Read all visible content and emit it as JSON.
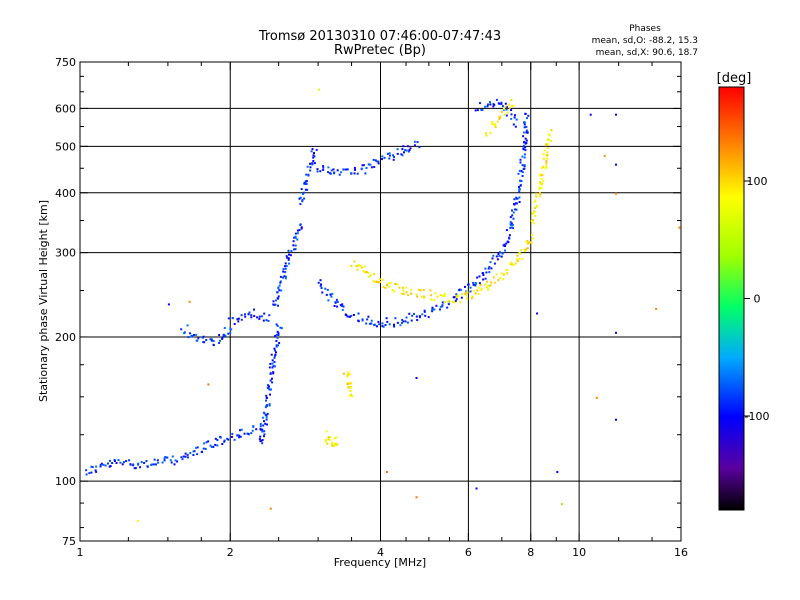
{
  "chart_data": {
    "type": "scatter",
    "title": "Tromsø 20130310 07:46:00-07:47:43",
    "subtitle": "RwPretec (Bp)",
    "xlabel": "Frequency [MHz]",
    "ylabel": "Stationary phase Virtual Height [km]",
    "x_scale": "log",
    "y_scale": "log",
    "xlim": [
      1,
      16
    ],
    "ylim": [
      75,
      750
    ],
    "grid": true,
    "x_ticks": [
      1,
      2,
      4,
      6,
      8,
      10,
      16
    ],
    "x_tick_labels": [
      "1",
      "2",
      "4",
      "6",
      "8",
      "10",
      "16"
    ],
    "y_ticks": [
      75,
      100,
      200,
      300,
      400,
      500,
      600,
      750
    ],
    "y_tick_labels": [
      "75",
      "100",
      "200",
      "300",
      "400",
      "500",
      "600",
      "750"
    ],
    "x_minor_ticks": [
      1.25,
      1.5,
      1.75,
      2.5,
      3,
      3.5,
      4.5,
      5,
      5.5,
      7,
      9,
      12,
      14
    ],
    "y_minor_ticks": [
      80,
      90,
      125,
      150,
      175,
      250,
      350,
      450,
      550,
      650,
      700
    ],
    "phase_stats": {
      "heading": "Phases",
      "line_o": "mean, sd,O: -88.2, 15.3",
      "line_x": "mean, sd,X:  90.6, 18.7"
    },
    "colorbar": {
      "label": "[deg]",
      "range": [
        -180,
        180
      ],
      "ticks": [
        100,
        0,
        -100
      ],
      "tick_labels": [
        "100",
        "0",
        "-100"
      ],
      "colormap": "rainbow"
    },
    "series": [
      {
        "color_deg": -88,
        "segments": [
          {
            "x": [
              1.02,
              1.1,
              1.2,
              1.3,
              1.45,
              1.6
            ],
            "y": [
              105,
              108,
              110,
              109,
              110,
              112
            ]
          },
          {
            "x": [
              1.6,
              1.75,
              1.9,
              2.05,
              2.2,
              2.35
            ],
            "y": [
              112,
              118,
              122,
              125,
              128,
              130
            ]
          },
          {
            "x": [
              2.3,
              2.35,
              2.4,
              2.45,
              2.5
            ],
            "y": [
              120,
              140,
              165,
              190,
              215
            ]
          },
          {
            "x": [
              1.6,
              1.7,
              1.8,
              1.9,
              2.0
            ],
            "y": [
              210,
              200,
              195,
              198,
              212
            ]
          },
          {
            "x": [
              2.0,
              2.1,
              2.2,
              2.3,
              2.4
            ],
            "y": [
              215,
              220,
              225,
              222,
              218
            ]
          },
          {
            "x": [
              2.45,
              2.52,
              2.6,
              2.68,
              2.76
            ],
            "y": [
              230,
              260,
              290,
              320,
              350
            ]
          },
          {
            "x": [
              2.76,
              2.82,
              2.88,
              2.95
            ],
            "y": [
              380,
              420,
              460,
              500
            ]
          },
          {
            "x": [
              2.95,
              3.1,
              3.25,
              3.4,
              3.55,
              3.7
            ],
            "y": [
              455,
              450,
              445,
              448,
              450,
              445
            ]
          },
          {
            "x": [
              3.7,
              3.85,
              4.0,
              4.2,
              4.4,
              4.6,
              4.75
            ],
            "y": [
              450,
              460,
              470,
              480,
              490,
              500,
              505
            ]
          },
          {
            "x": [
              3.0,
              3.2,
              3.4,
              3.6,
              3.8,
              4.0,
              4.3,
              4.6,
              5.0,
              5.5
            ],
            "y": [
              260,
              240,
              228,
              220,
              216,
              215,
              216,
              220,
              226,
              236
            ]
          },
          {
            "x": [
              5.5,
              6.0,
              6.5,
              7.0,
              7.3,
              7.5,
              7.65,
              7.75,
              7.85
            ],
            "y": [
              240,
              255,
              275,
              305,
              345,
              395,
              450,
              520,
              590
            ]
          },
          {
            "x": [
              6.2,
              6.6,
              7.0,
              7.3,
              7.5
            ],
            "y": [
              600,
              620,
              610,
              580,
              560
            ]
          }
        ]
      },
      {
        "color_deg": 90,
        "segments": [
          {
            "x": [
              3.5,
              3.7,
              3.9,
              4.1,
              4.4,
              4.7,
              5.0,
              5.3,
              5.6
            ],
            "y": [
              290,
              275,
              265,
              258,
              252,
              248,
              246,
              243,
              240
            ]
          },
          {
            "x": [
              5.6,
              6.0,
              6.5,
              7.0,
              7.5,
              7.8,
              8.0
            ],
            "y": [
              240,
              245,
              258,
              272,
              292,
              310,
              330
            ]
          },
          {
            "x": [
              8.0,
              8.2,
              8.35,
              8.5,
              8.6,
              8.7
            ],
            "y": [
              350,
              390,
              430,
              470,
              510,
              540
            ]
          },
          {
            "x": [
              3.4,
              3.45,
              3.5
            ],
            "y": [
              170,
              160,
              150
            ]
          },
          {
            "x": [
              3.1,
              3.15,
              3.2,
              3.25
            ],
            "y": [
              125,
              122,
              121,
              123
            ]
          },
          {
            "x": [
              6.5,
              6.8,
              7.1,
              7.4
            ],
            "y": [
              540,
              570,
              600,
              625
            ]
          }
        ]
      }
    ],
    "scattered_points": [
      {
        "x": 11.8,
        "y": 585,
        "color_deg": -100
      },
      {
        "x": 11.8,
        "y": 460,
        "color_deg": -100
      },
      {
        "x": 11.8,
        "y": 205,
        "color_deg": -100
      },
      {
        "x": 11.8,
        "y": 135,
        "color_deg": -100
      },
      {
        "x": 10.5,
        "y": 585,
        "color_deg": -100
      },
      {
        "x": 9.0,
        "y": 105,
        "color_deg": -100
      },
      {
        "x": 6.2,
        "y": 97,
        "color_deg": -100
      },
      {
        "x": 4.7,
        "y": 165,
        "color_deg": -100
      },
      {
        "x": 8.2,
        "y": 225,
        "color_deg": -100
      },
      {
        "x": 1.5,
        "y": 235,
        "color_deg": -100
      },
      {
        "x": 11.8,
        "y": 400,
        "color_deg": 130
      },
      {
        "x": 11.2,
        "y": 480,
        "color_deg": 130
      },
      {
        "x": 14.2,
        "y": 230,
        "color_deg": 130
      },
      {
        "x": 15.8,
        "y": 340,
        "color_deg": 130
      },
      {
        "x": 10.8,
        "y": 150,
        "color_deg": 130
      },
      {
        "x": 4.1,
        "y": 105,
        "color_deg": 140
      },
      {
        "x": 4.7,
        "y": 93,
        "color_deg": 140
      },
      {
        "x": 2.4,
        "y": 88,
        "color_deg": 130
      },
      {
        "x": 1.3,
        "y": 83,
        "color_deg": 90
      },
      {
        "x": 9.2,
        "y": 90,
        "color_deg": 30
      },
      {
        "x": 3.0,
        "y": 660,
        "color_deg": 60
      },
      {
        "x": 1.8,
        "y": 160,
        "color_deg": 140
      },
      {
        "x": 1.65,
        "y": 238,
        "color_deg": 130
      }
    ]
  }
}
